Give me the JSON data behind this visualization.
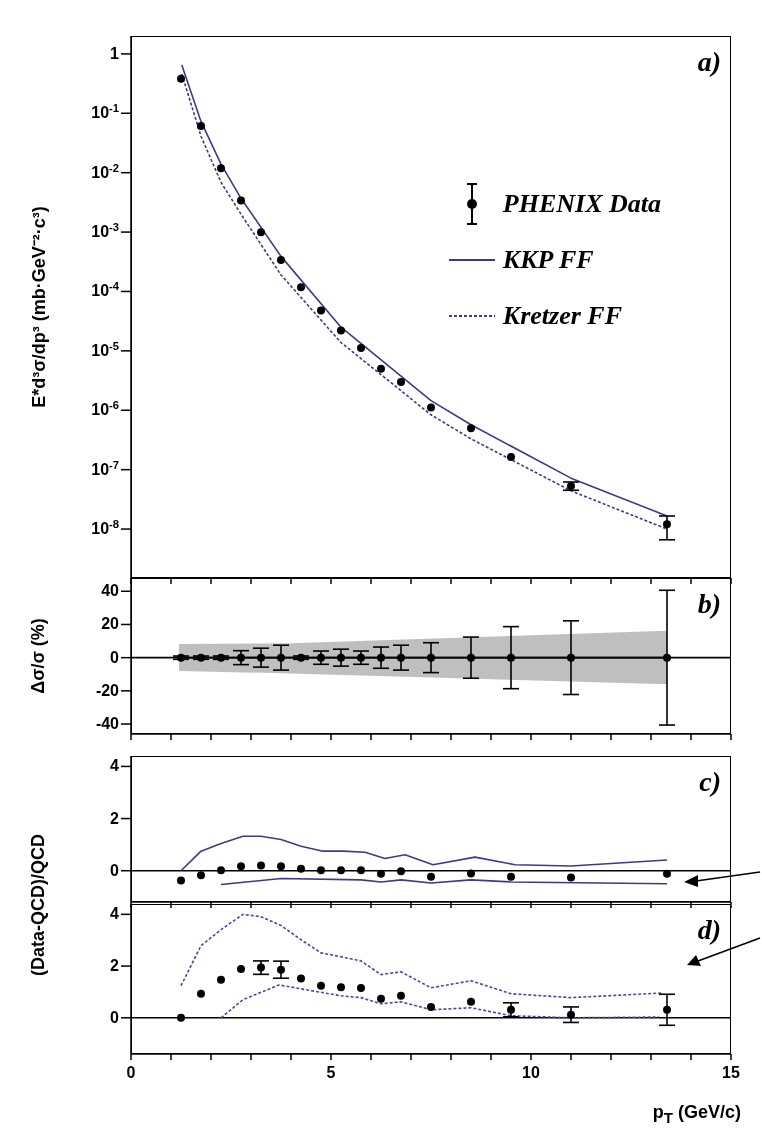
{
  "chart_data": [
    {
      "type": "scatter",
      "ylabel": "E*d³σ/dp³ (mb·GeV⁻²·c³)",
      "annotations": [
        "a)"
      ],
      "log": "y",
      "legend": "top right",
      "tick_labels": "y",
      "xlim": [
        0,
        15
      ],
      "xticks": [
        0,
        {
          "value": 1,
          "label": null
        },
        {
          "value": 2,
          "label": null
        },
        {
          "value": 3,
          "label": null
        },
        {
          "value": 4,
          "label": null
        },
        5,
        {
          "value": 6,
          "label": null
        },
        {
          "value": 7,
          "label": null
        },
        {
          "value": 8,
          "label": null
        },
        {
          "value": 9,
          "label": null
        },
        10,
        {
          "value": 11,
          "label": null
        },
        {
          "value": 12,
          "label": null
        },
        {
          "value": 13,
          "label": null
        },
        {
          "value": 14,
          "label": null
        },
        15
      ],
      "ylim": [
        1.5e-09,
        2
      ],
      "yticks": [
        1,
        {
          "value": 0.1,
          "label": "10$^{-1}$"
        },
        {
          "value": 0.01,
          "label": "10$^{-2}$"
        },
        {
          "value": 0.001,
          "label": "10$^{-3}$"
        },
        {
          "value": 0.0001,
          "label": "10$^{-4}$"
        },
        {
          "value": 1e-05,
          "label": "10$^{-5}$"
        },
        {
          "value": 1e-06,
          "label": "10$^{-6}$"
        },
        {
          "value": 1e-07,
          "label": "10$^{-7}$"
        },
        {
          "value": 1e-08,
          "label": "10$^{-8}$"
        }
      ],
      "series": [
        {
          "name": "PHENIX Data",
          "marker": "circle",
          "color": "#000000",
          "x": [
            1.25,
            1.75,
            2.25,
            2.75,
            3.25,
            3.75,
            4.25,
            4.75,
            5.25,
            5.75,
            6.25,
            6.75,
            7.5,
            8.5,
            9.5,
            11,
            13.4
          ],
          "values": [
            0.38,
            0.061,
            0.0119,
            0.0034,
            0.00099,
            0.00034,
            0.000118,
            4.8e-05,
            2.2e-05,
            1.12e-05,
            5e-06,
            3e-06,
            1.11e-06,
            5e-07,
            1.64e-07,
            5.3e-08,
            1.2e-08
          ],
          "errors": [
            null,
            null,
            null,
            null,
            null,
            null,
            null,
            null,
            null,
            null,
            null,
            null,
            null,
            null,
            null,
            [
              4.5e-08,
              6.2e-08
            ],
            [
              6.6e-09,
              1.66e-08
            ]
          ]
        },
        {
          "name": "KKP FF",
          "type": "line",
          "line_style": "solid",
          "color": "#3c3a8a",
          "x": [
            1.27,
            1.75,
            2.25,
            2.75,
            3.75,
            5.25,
            7.5,
            8.5,
            11,
            13.4
          ],
          "values": [
            0.65,
            0.073,
            0.0139,
            0.0037,
            0.00039,
            2.5e-05,
            1.45e-06,
            5.7e-07,
            7.2e-08,
            1.66e-08
          ]
        },
        {
          "name": "Kretzer FF",
          "type": "line",
          "line_style": "dashed",
          "color": "#3c3a8a",
          "x": [
            1.27,
            1.75,
            2.25,
            2.75,
            3.75,
            5.25,
            7.5,
            8.5,
            11,
            13.4
          ],
          "values": [
            0.46,
            0.041,
            0.0069,
            0.002,
            0.00019,
            1.38e-05,
            8.4e-07,
            3.3e-07,
            4.4e-08,
            1e-08
          ]
        }
      ]
    },
    {
      "type": "scatter",
      "ylabel": "Δσ/σ (%)",
      "annotations": [
        "b)"
      ],
      "tick_labels": "y",
      "xlim": [
        0,
        15
      ],
      "xticks": [
        0,
        {
          "value": 1,
          "label": null
        },
        {
          "value": 2,
          "label": null
        },
        {
          "value": 3,
          "label": null
        },
        {
          "value": 4,
          "label": null
        },
        5,
        {
          "value": 6,
          "label": null
        },
        {
          "value": 7,
          "label": null
        },
        {
          "value": 8,
          "label": null
        },
        {
          "value": 9,
          "label": null
        },
        10,
        {
          "value": 11,
          "label": null
        },
        {
          "value": 12,
          "label": null
        },
        {
          "value": 13,
          "label": null
        },
        {
          "value": 14,
          "label": null
        },
        15
      ],
      "ylim": [
        -46,
        48
      ],
      "yticks": [
        40,
        20,
        0,
        -20,
        -40
      ],
      "ref_lines": [
        {
          "axis": "y",
          "value": 0,
          "color": "#000000"
        }
      ],
      "series": [
        {
          "type": "line",
          "color": "#000000",
          "x": [
            1.2,
            4,
            13.4
          ],
          "values": [
            0,
            0,
            0
          ],
          "lower": [
            -8,
            -9.5,
            -16
          ],
          "upper": [
            8.2,
            8.7,
            16.2
          ]
        },
        {
          "marker": "circle",
          "color": "#000000",
          "x": [
            1.25,
            1.75,
            2.25,
            2.75,
            3.25,
            3.75,
            4.25,
            4.75,
            5.25,
            5.75,
            6.25,
            6.75,
            7.5,
            8.5,
            9.5,
            11,
            13.4
          ],
          "values": [
            0,
            0,
            0,
            0,
            0,
            0,
            0,
            0,
            0,
            0,
            0,
            0,
            0,
            0,
            0,
            0,
            0
          ],
          "errors": [
            1,
            1,
            1,
            4.2,
            5.7,
            7.5,
            1,
            4,
            5.1,
            4,
            6.4,
            7.5,
            9,
            12.4,
            18.7,
            22.2,
            40.6
          ]
        }
      ]
    },
    {
      "type": "scatter",
      "ylabel": "(Data-QCD)/QCD",
      "annotations": [
        "c)"
      ],
      "tick_labels": "y",
      "xlim": [
        0,
        15
      ],
      "xticks": [
        0,
        {
          "value": 1,
          "label": null
        },
        {
          "value": 2,
          "label": null
        },
        {
          "value": 3,
          "label": null
        },
        {
          "value": 4,
          "label": null
        },
        5,
        {
          "value": 6,
          "label": null
        },
        {
          "value": 7,
          "label": null
        },
        {
          "value": 8,
          "label": null
        },
        {
          "value": 9,
          "label": null
        },
        10,
        {
          "value": 11,
          "label": null
        },
        {
          "value": 12,
          "label": null
        },
        {
          "value": 13,
          "label": null
        },
        {
          "value": 14,
          "label": null
        },
        15
      ],
      "ylim": [
        -1.2,
        4.4
      ],
      "yticks": [
        4,
        2,
        0
      ],
      "ref_lines": [
        {
          "axis": "y",
          "value": 0,
          "color": "#000000"
        }
      ],
      "series": [
        {
          "type": "line",
          "line_style": "solid",
          "color": "#3c3a8a",
          "x": [
            1.25,
            1.75,
            2.25,
            2.8,
            3.25,
            3.75,
            4.25,
            4.8,
            5.3,
            5.85,
            6.35,
            6.85,
            7.55,
            8.6,
            9.6,
            11,
            13.4
          ],
          "values": [
            0,
            0.75,
            1.04,
            1.32,
            1.32,
            1.2,
            0.94,
            0.75,
            0.75,
            0.71,
            0.47,
            0.61,
            0.23,
            0.52,
            0.23,
            0.18,
            0.41
          ]
        },
        {
          "type": "line",
          "line_style": "solid",
          "color": "#3c3a8a",
          "x": [
            2.25,
            3.75,
            5.75,
            6.25,
            6.75,
            7.5,
            8.5,
            9.5,
            13.4
          ],
          "values": [
            -0.53,
            -0.3,
            -0.35,
            -0.43,
            -0.35,
            -0.47,
            -0.35,
            -0.43,
            -0.5
          ]
        },
        {
          "marker": "circle",
          "color": "#000000",
          "x": [
            1.25,
            1.75,
            2.25,
            2.75,
            3.25,
            3.75,
            4.25,
            4.75,
            5.25,
            5.75,
            6.25,
            6.75,
            7.5,
            8.5,
            9.5,
            11,
            13.4
          ],
          "values": [
            -0.38,
            -0.17,
            0.02,
            0.17,
            0.2,
            0.17,
            0.08,
            0.02,
            0.02,
            0.02,
            -0.12,
            -0.02,
            -0.23,
            -0.11,
            -0.23,
            -0.26,
            -0.12
          ]
        }
      ]
    },
    {
      "type": "scatter",
      "xlabel": "p$_{T}$ (GeV/c)",
      "annotations": [
        "d)"
      ],
      "xlim": [
        0,
        15
      ],
      "xticks": [
        0,
        {
          "value": 1,
          "label": null
        },
        {
          "value": 2,
          "label": null
        },
        {
          "value": 3,
          "label": null
        },
        {
          "value": 4,
          "label": null
        },
        5,
        {
          "value": 6,
          "label": null
        },
        {
          "value": 7,
          "label": null
        },
        {
          "value": 8,
          "label": null
        },
        {
          "value": 9,
          "label": null
        },
        10,
        {
          "value": 11,
          "label": null
        },
        {
          "value": 12,
          "label": null
        },
        {
          "value": 13,
          "label": null
        },
        {
          "value": 14,
          "label": null
        },
        15
      ],
      "ylim": [
        -1.4,
        4.4
      ],
      "yticks": [
        4,
        2,
        0
      ],
      "ref_lines": [
        {
          "axis": "y",
          "value": 0,
          "color": "#000000"
        }
      ],
      "series": [
        {
          "type": "line",
          "line_style": "dashed",
          "color": "#4a48a0",
          "x": [
            1.25,
            1.75,
            2.25,
            2.8,
            3.25,
            3.75,
            4.25,
            4.75,
            5.25,
            5.75,
            6.25,
            6.75,
            7.5,
            8.5,
            9.5,
            11,
            13.3
          ],
          "values": [
            1.24,
            2.79,
            3.41,
            4.0,
            3.91,
            3.57,
            3.02,
            2.51,
            2.36,
            2.2,
            1.67,
            1.78,
            1.16,
            1.43,
            0.93,
            0.78,
            0.96
          ]
        },
        {
          "type": "line",
          "line_style": "dashed",
          "color": "#4a48a0",
          "x": [
            2.25,
            2.8,
            3.7,
            4.25,
            5.25,
            5.75,
            6.25,
            6.75,
            7.5,
            8.5,
            9.5,
            11,
            13.2
          ],
          "values": [
            0,
            0.7,
            1.27,
            1.12,
            0.85,
            0.78,
            0.54,
            0.62,
            0.31,
            0.39,
            0.08,
            0,
            0.03
          ]
        },
        {
          "marker": "circle",
          "color": "#000000",
          "x": [
            1.25,
            1.75,
            2.25,
            2.75,
            3.25,
            3.75,
            4.25,
            4.75,
            5.25,
            5.75,
            6.25,
            6.75,
            7.5,
            8.5,
            9.5,
            11,
            13.4
          ],
          "values": [
            0,
            0.93,
            1.47,
            1.89,
            1.94,
            1.86,
            1.52,
            1.24,
            1.18,
            1.15,
            0.74,
            0.85,
            0.42,
            0.62,
            0.31,
            0.12,
            0.31
          ],
          "errors": [
            null,
            null,
            null,
            null,
            0.26,
            0.33,
            null,
            null,
            null,
            null,
            null,
            null,
            null,
            null,
            0.27,
            0.3,
            0.6
          ]
        }
      ]
    }
  ]
}
